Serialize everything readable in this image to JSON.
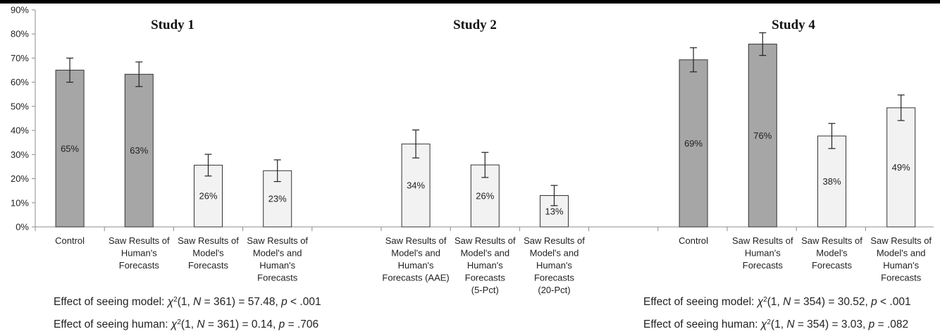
{
  "chart_data": {
    "type": "bar",
    "ylim": [
      0,
      0.9
    ],
    "yticks": [
      "0%",
      "10%",
      "20%",
      "30%",
      "40%",
      "50%",
      "60%",
      "70%",
      "80%",
      "90%"
    ],
    "grid": false,
    "panels": [
      {
        "title": "Study 1",
        "bars": [
          {
            "label": "Control",
            "value": 0.65,
            "err": 0.05,
            "data_label": "65%",
            "shade": "dark"
          },
          {
            "label": "Saw Results of Human's Forecasts",
            "value": 0.633,
            "err": 0.051,
            "data_label": "63%",
            "shade": "dark"
          },
          {
            "label": "Saw Results of Model's Forecasts",
            "value": 0.256,
            "err": 0.045,
            "data_label": "26%",
            "shade": "light"
          },
          {
            "label": "Saw Results of Model's and Human's Forecasts",
            "value": 0.233,
            "err": 0.045,
            "data_label": "23%",
            "shade": "light"
          }
        ],
        "stats": [
          {
            "prefix": "Effect of seeing model: ",
            "chi": "χ",
            "sup": "2",
            "open": "(1, ",
            "n": "N",
            "mid": " = 361) = 57.48, ",
            "p": "p",
            "end": " < .001"
          },
          {
            "prefix": "Effect of seeing human: ",
            "chi": "χ",
            "sup": "2",
            "open": "(1, ",
            "n": "N",
            "mid": " = 361) = 0.14, ",
            "p": "p",
            "end": " = .706"
          }
        ]
      },
      {
        "title": "Study 2",
        "bars": [
          {
            "label": "Saw Results of Model's and Human's Forecasts (AAE)",
            "value": 0.344,
            "err": 0.058,
            "data_label": "34%",
            "shade": "light"
          },
          {
            "label": "Saw Results of Model's and Human's Forecasts (5-Pct)",
            "value": 0.257,
            "err": 0.052,
            "data_label": "26%",
            "shade": "light"
          },
          {
            "label": "Saw Results of Model's and Human's Forecasts (20-Pct)",
            "value": 0.13,
            "err": 0.042,
            "data_label": "13%",
            "shade": "light"
          }
        ],
        "stats": []
      },
      {
        "title": "Study 4",
        "bars": [
          {
            "label": "Control",
            "value": 0.693,
            "err": 0.05,
            "data_label": "69%",
            "shade": "dark"
          },
          {
            "label": "Saw Results of Human's Forecasts",
            "value": 0.758,
            "err": 0.047,
            "data_label": "76%",
            "shade": "dark"
          },
          {
            "label": "Saw Results of Model's Forecasts",
            "value": 0.377,
            "err": 0.052,
            "data_label": "38%",
            "shade": "light"
          },
          {
            "label": "Saw Results of Model's and Human's Forecasts",
            "value": 0.494,
            "err": 0.053,
            "data_label": "49%",
            "shade": "light"
          }
        ],
        "stats": [
          {
            "prefix": "Effect of seeing model: ",
            "chi": "χ",
            "sup": "2",
            "open": "(1, ",
            "n": "N",
            "mid": " = 354) = 30.52, ",
            "p": "p",
            "end": " < .001"
          },
          {
            "prefix": "Effect of seeing human: ",
            "chi": "χ",
            "sup": "2",
            "open": "(1, ",
            "n": "N",
            "mid": " = 354) = 3.03, ",
            "p": "p",
            "end": " = .082"
          }
        ]
      }
    ],
    "colors": {
      "dark": "#a6a6a6",
      "light": "#f2f2f2",
      "outline": "#333333",
      "axis": "#8c8c8c",
      "topbar": "#000000"
    }
  }
}
